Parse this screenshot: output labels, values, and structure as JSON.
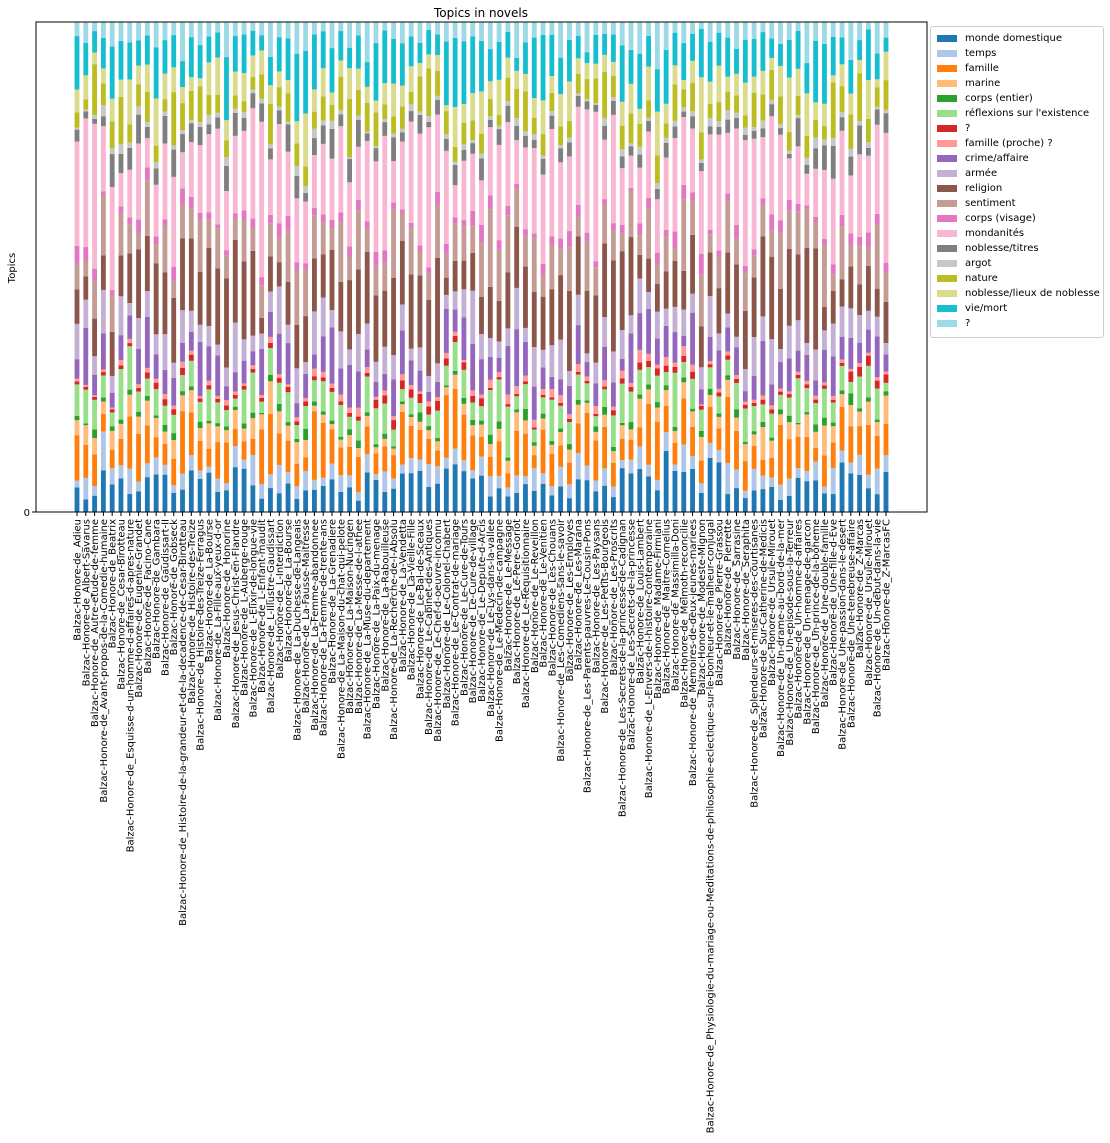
{
  "chart_data": {
    "type": "bar",
    "stacked": true,
    "title": "Topics in novels",
    "xlabel": "",
    "ylabel": "Topics",
    "y_ticks": [
      "0"
    ],
    "legend_position": "outside right, top",
    "series": [
      {
        "name": "monde domestique",
        "color": "#1f77b4"
      },
      {
        "name": "temps",
        "color": "#aec7e8"
      },
      {
        "name": "famille",
        "color": "#ff7f0e"
      },
      {
        "name": "marine",
        "color": "#ffbb78"
      },
      {
        "name": "corps (entier)",
        "color": "#2ca02c"
      },
      {
        "name": "réflexions sur l'existence",
        "color": "#98df8a"
      },
      {
        "name": "?",
        "color": "#d62728"
      },
      {
        "name": "famille (proche) ?",
        "color": "#ff9896"
      },
      {
        "name": "crime/affaire",
        "color": "#9467bd"
      },
      {
        "name": "armée",
        "color": "#c5b0d5"
      },
      {
        "name": "religion",
        "color": "#8c564b"
      },
      {
        "name": "sentiment",
        "color": "#c49c94"
      },
      {
        "name": "corps (visage)",
        "color": "#e377c2"
      },
      {
        "name": "mondanités",
        "color": "#f7b6d2"
      },
      {
        "name": "noblesse/titres",
        "color": "#7f7f7f"
      },
      {
        "name": "argot",
        "color": "#c7c7c7"
      },
      {
        "name": "nature",
        "color": "#bcbd22"
      },
      {
        "name": "noblesse/lieux de noblesse",
        "color": "#dbdb8d"
      },
      {
        "name": "vie/mort",
        "color": "#17becf"
      },
      {
        "name": "?",
        "color": "#9edae5"
      }
    ],
    "categories": [
      "Balzac-Honore-de_Adieu",
      "Balzac-Honore-de_Albert-Savarus",
      "Balzac-Honore-de_Autre-etude-de-femme",
      "Balzac-Honore-de_Avant-propos-de-la-Comedie-humaine",
      "Balzac-Honore-de_Beatrix",
      "Balzac-Honore-de_Cesar-Birotteau",
      "Balzac-Honore-de_Esquisse-d-un-homme-d-affaires-d-apres-nature",
      "Balzac-Honore-de_Eugenie-Grandet",
      "Balzac-Honore-de_Facino-Cane",
      "Balzac-Honore-de_Gambara",
      "Balzac-Honore-de_Gaudissart-II",
      "Balzac-Honore-de_Gobseck",
      "Balzac-Honore-de_Histoire-de-la-grandeur-et-de-la-decadence-de-Cesar-Birotteau",
      "Balzac-Honore-de_Histoire-des-Treize",
      "Balzac-Honore-de_Histoire-des-Treize-Ferragus",
      "Balzac-Honore-de_La-Bourse",
      "Balzac-Honore-de_La-Fille-aux-yeux-d-or",
      "Balzac-Honore-de_Honorine",
      "Balzac-Honore-de_Jesus-Christ-en-Flandre",
      "Balzac-Honore-de_L-Auberge-rouge",
      "Balzac-Honore-de_L-Elixir-de-longue-vie",
      "Balzac-Honore-de_L-Enfant-maudit",
      "Balzac-Honore-de_L-Illustre-Gaudissart",
      "Balzac-Honore-de_L-Interdiction",
      "Balzac-Honore-de_La-Bourse",
      "Balzac-Honore-de_La-Duchesse-de-Langeais",
      "Balzac-Honore-de_La-Fausse-Maitresse",
      "Balzac-Honore-de_La-Femme-abandonnee",
      "Balzac-Honore-de_La-Femme-de-trente-ans",
      "Balzac-Honore-de_La-Grenadiere",
      "Balzac-Honore-de_La-Maison-du-chat-qui-pelote",
      "Balzac-Honore-de_La-Maison-Nucingen",
      "Balzac-Honore-de_La-Messe-de-l-athee",
      "Balzac-Honore-de_La-Muse-du-departement",
      "Balzac-Honore-de_La-Paix-du-menage",
      "Balzac-Honore-de_La-Rabouilleuse",
      "Balzac-Honore-de_La-Recherche-de-l-Absolu",
      "Balzac-Honore-de_La-Vendetta",
      "Balzac-Honore-de_La-Vieille-Fille",
      "Balzac-Honore-de_Le-Bal-de-Sceaux",
      "Balzac-Honore-de_Le-Cabinet-des-Antiques",
      "Balzac-Honore-de_Le-Chef-d-oeuvre-inconnu",
      "Balzac-Honore-de_Le-Colonel-Chabert",
      "Balzac-Honore-de_Le-Contrat-de-mariage",
      "Balzac-Honore-de_Le-Cure-de-Tours",
      "Balzac-Honore-de_Le-Cure-de-village",
      "Balzac-Honore-de_Le-Depute-d-Arcis",
      "Balzac-Honore-de_Le-Lys-dans-la-vallee",
      "Balzac-Honore-de_Le-Medecin-de-campagne",
      "Balzac-Honore-de_Le-Message",
      "Balzac-Honore-de_Le-Pere-Goriot",
      "Balzac-Honore-de_Le-Requisitionnaire",
      "Balzac-Honore-de_Le-Reveillon",
      "Balzac-Honore-de_Le-Venitien",
      "Balzac-Honore-de_Les-Chouans",
      "Balzac-Honore-de_Les-Comediens-sans-le-savoir",
      "Balzac-Honore-de_Les-Employes",
      "Balzac-Honore-de_Les-Marana",
      "Balzac-Honore-de_Les-Parents-pauvres-Le-Cousin-Pons",
      "Balzac-Honore-de_Les-Paysans",
      "Balzac-Honore-de_Les-Petits-Bourgeois",
      "Balzac-Honore-de_Les-Proscrits",
      "Balzac-Honore-de_Les-Secrets-de-la-princesse-de-Cadignan",
      "Balzac-Honore-de_Les-Secrets-de-la-princesse",
      "Balzac-Honore-de_Louis-Lambert",
      "Balzac-Honore-de_L-Envers-de-l-histoire-contemporaine",
      "Balzac-Honore-de_Madame-Firmiani",
      "Balzac-Honore-de_Maitre-Cornelius",
      "Balzac-Honore-de_Massimilla-Doni",
      "Balzac-Honore-de_Melmoth-reconcilie",
      "Balzac-Honore-de_Memoires-de-deux-jeunes-mariees",
      "Balzac-Honore-de_Modeste-Mignon",
      "Balzac-Honore-de_Physiologie-du-mariage-ou-Meditations-de-philosophie-eclectique-sur-le-bonheur-et-le-malheur-conjugal",
      "Balzac-Honore-de_Pierre-Grassou",
      "Balzac-Honore-de_Pierrette",
      "Balzac-Honore-de_Sarrasine",
      "Balzac-Honore-de_Seraphita",
      "Balzac-Honore-de_Splendeurs-et-miseres-des-courtisanes",
      "Balzac-Honore-de_Sur-Catherine-de-Medicis",
      "Balzac-Honore-de_Ursule-Mirouet",
      "Balzac-Honore-de_Un-drame-au-bord-de-la-mer",
      "Balzac-Honore-de_Un-episode-sous-la-Terreur",
      "Balzac-Honore-de_Un-homme-d-affaires",
      "Balzac-Honore-de_Un-menage-de-garcon",
      "Balzac-Honore-de_Un-prince-de-la-boheme",
      "Balzac-Honore-de_Une-double-famille",
      "Balzac-Honore-de_Une-fille-d-Eve",
      "Balzac-Honore-de_Une-passion-dans-le-desert",
      "Balzac-Honore-de_Une-tenebreuse-affaire",
      "Balzac-Honore-de_Z-Marcas",
      "Balzac-Honore-de_Ursule-Mirouet",
      "Balzac-Honore-de_Un-debut-dans-la-vie",
      "Balzac-Honore-de_Z-MarcasFC"
    ]
  }
}
